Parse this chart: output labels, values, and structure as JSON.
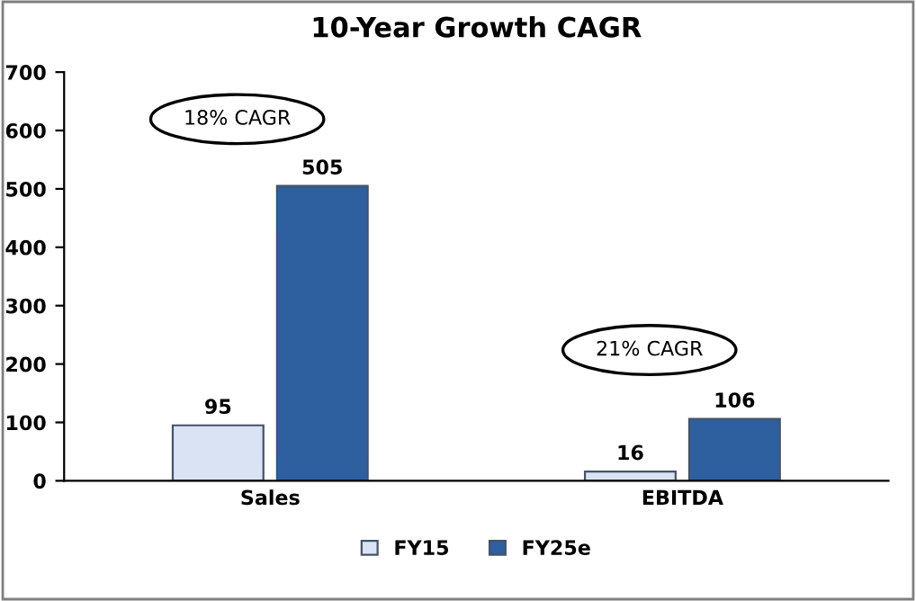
{
  "chart_data": {
    "type": "bar",
    "title": "10-Year Growth CAGR",
    "categories": [
      "Sales",
      "EBITDA"
    ],
    "series": [
      {
        "name": "FY15",
        "color": "#dae3f3",
        "values": [
          95,
          16
        ]
      },
      {
        "name": "FY25e",
        "color": "#2e5f9e",
        "values": [
          505,
          106
        ]
      }
    ],
    "ylim": [
      0,
      700
    ],
    "yticks": [
      0,
      100,
      200,
      300,
      400,
      500,
      600,
      700
    ],
    "grid": false,
    "legend": "bottom",
    "data_labels": true,
    "annotations": [
      "18% CAGR",
      "21% CAGR"
    ]
  }
}
